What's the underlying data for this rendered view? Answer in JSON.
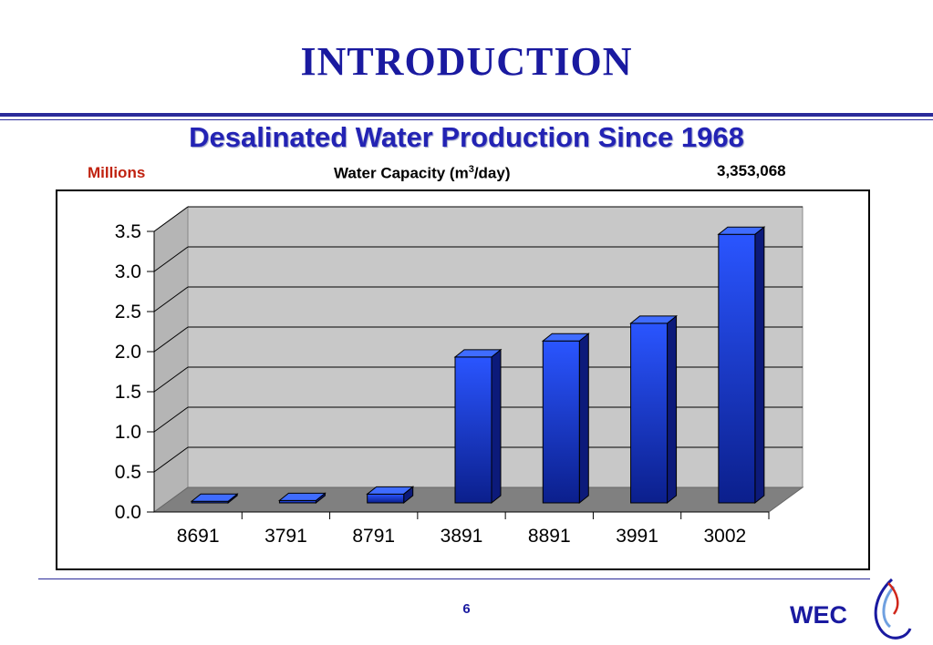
{
  "slide": {
    "title": "INTRODUCTION",
    "subtitle": "Desalinated Water Production Since 1968",
    "millions_label": "Millions",
    "capacity_label_main": "Water Capacity (m",
    "capacity_label_sup": "3",
    "capacity_label_end": "/day)",
    "top_value_label": "3,353,068",
    "page_number": "6",
    "brand": "WEC"
  },
  "colors": {
    "title": "#1a1aa0",
    "bar_front": "#2a55ff",
    "bar_side": "#0c1a7a",
    "bar_top": "#3f6cff",
    "wall": "#c8c8c8",
    "floor": "#808080"
  },
  "chart_data": {
    "type": "bar",
    "categories": [
      "8691",
      "3791",
      "8791",
      "3891",
      "8891",
      "3991",
      "3002"
    ],
    "values": [
      0.02,
      0.03,
      0.11,
      1.82,
      2.02,
      2.24,
      3.35
    ],
    "yticks": [
      "0.0",
      "0.5",
      "1.0",
      "1.5",
      "2.0",
      "2.5",
      "3.0",
      "3.5"
    ],
    "ylim": [
      0,
      3.5
    ],
    "grid": true,
    "style": "3d"
  }
}
